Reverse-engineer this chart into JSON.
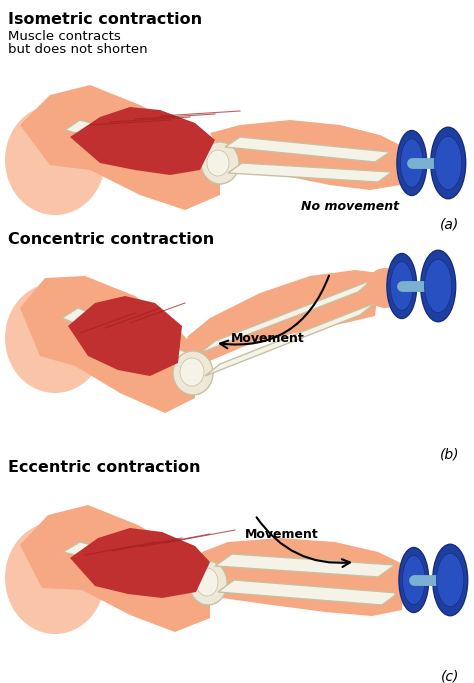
{
  "bg_color": "#ffffff",
  "skin_color": "#f5a882",
  "skin_mid": "#e8906a",
  "skin_light": "#fac4a8",
  "bone_color": "#ede8d8",
  "bone_outline": "#c8c0a0",
  "bone_light": "#f5f2e8",
  "muscle_color": "#c03030",
  "muscle_mid": "#a02020",
  "muscle_light": "#d04040",
  "blue_main": "#1e3fa0",
  "blue_dark": "#152d80",
  "blue_light": "#2850c0",
  "handle_color": "#7ab0d0",
  "text_title1": "Isometric contraction",
  "text_sub1a": "Muscle contracts",
  "text_sub1b": "but does not shorten",
  "text_title2": "Concentric contraction",
  "text_title3": "Eccentric contraction",
  "label_a": "(a)",
  "label_b": "(b)",
  "label_c": "(c)",
  "no_movement": "No movement",
  "movement": "Movement",
  "fig_width": 4.74,
  "fig_height": 6.83
}
